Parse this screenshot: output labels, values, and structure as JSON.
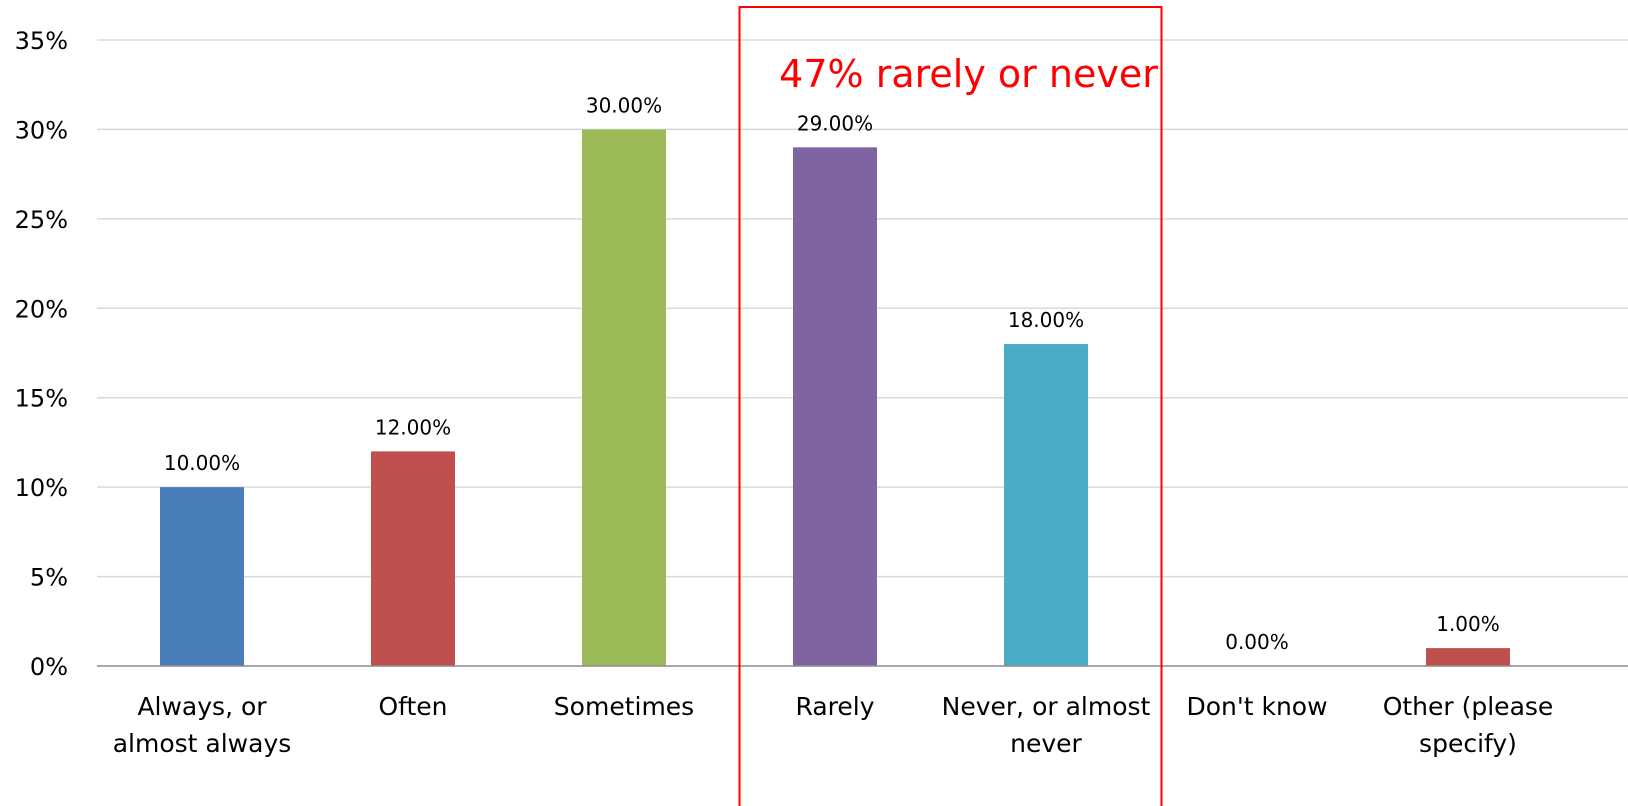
{
  "chart_data": {
    "type": "bar",
    "categories": [
      [
        "Always, or",
        "almost always"
      ],
      [
        "Often"
      ],
      [
        "Sometimes"
      ],
      [
        "Rarely"
      ],
      [
        "Never, or almost",
        "never"
      ],
      [
        "Don't know"
      ],
      [
        "Other (please",
        "specify)"
      ]
    ],
    "values": [
      10,
      12,
      30,
      29,
      18,
      0,
      1
    ],
    "data_labels": [
      "10.00%",
      "12.00%",
      "30.00%",
      "29.00%",
      "18.00%",
      "0.00%",
      "1.00%"
    ],
    "bar_colors": [
      "#4a7ebb",
      "#c0504d",
      "#9bbb59",
      "#8064a2",
      "#4bacc6",
      "#f79646",
      "#c0504d"
    ],
    "ylim": [
      0,
      35
    ],
    "yticks": [
      0,
      5,
      10,
      15,
      20,
      25,
      30,
      35
    ],
    "ytick_labels": [
      "0%",
      "5%",
      "10%",
      "15%",
      "20%",
      "25%",
      "30%",
      "35%"
    ],
    "grid": true,
    "title": "",
    "xlabel": "",
    "ylabel": "",
    "annotation": {
      "text": "47% rarely or never",
      "color": "#ff0000",
      "categories_enclosed": [
        "Rarely",
        "Never, or almost never"
      ]
    }
  }
}
